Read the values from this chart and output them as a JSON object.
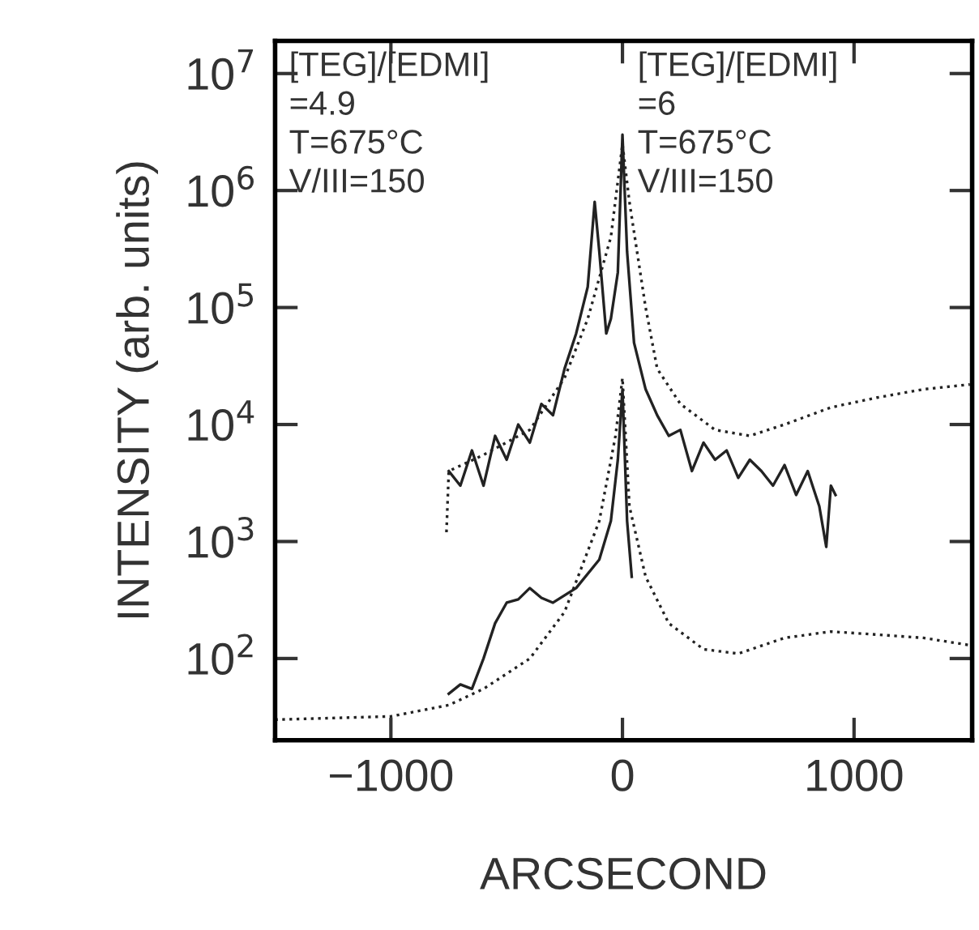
{
  "chart_data": {
    "type": "line",
    "xlabel": "ARCSECOND",
    "ylabel": "INTENSITY (arb. units)",
    "log": "y",
    "grid": false,
    "legend": false,
    "xlim": [
      -1500,
      1510
    ],
    "ylim": [
      20,
      19000000
    ],
    "xticks": [
      {
        "value": -1000,
        "label": "−1000"
      },
      0,
      1000
    ],
    "yticks": [
      {
        "value": 100,
        "label": "10$^{2}$"
      },
      {
        "value": 1000,
        "label": "10$^{3}$"
      },
      {
        "value": 10000,
        "label": "10$^{4}$"
      },
      {
        "value": 100000,
        "label": "10$^{5}$"
      },
      {
        "value": 1000000,
        "label": "10$^{6}$"
      },
      {
        "value": 10000000,
        "label": "10$^{7}$"
      }
    ],
    "annotations": [
      "[TEG]/[EDMI]\n=4.9\nT=675°C\nV/III=150",
      "[TEG]/[EDMI]\n=6\nT=675°C\nV/III=150"
    ],
    "series": [
      {
        "color": "#222222",
        "line_style": "solid",
        "x": [
          -750,
          -700,
          -650,
          -600,
          -550,
          -500,
          -450,
          -400,
          -350,
          -300,
          -250,
          -200,
          -150,
          -120,
          -100,
          -70,
          -50,
          -20,
          0,
          20,
          50,
          100,
          150,
          200,
          250,
          300,
          350,
          400,
          450,
          500,
          550,
          600,
          650,
          700,
          750,
          800,
          850,
          880,
          900,
          920
        ],
        "values": [
          4000,
          3000,
          6000,
          3000,
          8000,
          5000,
          10000,
          7000,
          15000,
          12000,
          30000,
          60000,
          150000,
          800000,
          300000,
          60000,
          80000,
          200000,
          3000000,
          300000,
          50000,
          20000,
          12000,
          8000,
          9000,
          4000,
          7000,
          5000,
          6000,
          3500,
          5000,
          4000,
          3000,
          4500,
          2500,
          4000,
          2000,
          900,
          3000,
          2500
        ]
      },
      {
        "color": "#222222",
        "line_style": "dotted",
        "x": [
          -760,
          -750,
          -600,
          -400,
          -250,
          -150,
          -50,
          0,
          30,
          100,
          150,
          250,
          400,
          550,
          700,
          900,
          1100,
          1300,
          1500
        ],
        "values": [
          1200,
          4000,
          5500,
          9000,
          25000,
          80000,
          400000,
          2500000,
          800000,
          100000,
          30000,
          15000,
          9000,
          8000,
          10000,
          14000,
          17000,
          20000,
          22000
        ]
      },
      {
        "color": "#222222",
        "line_style": "solid",
        "x": [
          -750,
          -700,
          -650,
          -600,
          -550,
          -500,
          -450,
          -400,
          -350,
          -300,
          -200,
          -100,
          -50,
          -20,
          0,
          20,
          40
        ],
        "values": [
          50,
          60,
          55,
          100,
          200,
          300,
          320,
          400,
          330,
          300,
          400,
          700,
          1500,
          5000,
          20000,
          1500,
          500
        ]
      },
      {
        "color": "#222222",
        "line_style": "dotted",
        "x": [
          -1500,
          -1000,
          -750,
          -600,
          -400,
          -250,
          -100,
          -30,
          0,
          30,
          100,
          200,
          350,
          500,
          700,
          900,
          1100,
          1300,
          1500
        ],
        "values": [
          30,
          32,
          40,
          55,
          100,
          250,
          1500,
          8000,
          25000,
          2000,
          500,
          200,
          120,
          110,
          150,
          170,
          160,
          150,
          130
        ]
      }
    ]
  }
}
